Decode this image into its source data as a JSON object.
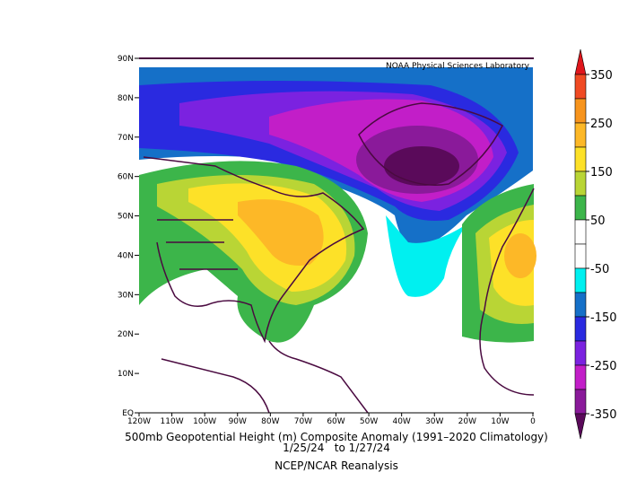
{
  "header": {
    "title": "NOAA Physical Sciences Laboratory"
  },
  "map": {
    "lat_labels": [
      "90N",
      "80N",
      "70N",
      "60N",
      "50N",
      "40N",
      "30N",
      "20N",
      "10N",
      "EQ"
    ],
    "lon_labels": [
      "120W",
      "110W",
      "100W",
      "90W",
      "80W",
      "70W",
      "60W",
      "50W",
      "40W",
      "30W",
      "20W",
      "10W",
      "0"
    ]
  },
  "colorbar": {
    "ticks": [
      350,
      250,
      150,
      50,
      -50,
      -150,
      -250,
      -350
    ],
    "colors": [
      "#e0161c",
      "#f04a23",
      "#f7941d",
      "#fdb827",
      "#fde128",
      "#b9d535",
      "#3cb54a",
      "#ffffff",
      "#ffffff",
      "#00f0f0",
      "#1570c8",
      "#2a2ae0",
      "#7b22e0",
      "#c21ec8",
      "#8a1a9a",
      "#5a0a5a"
    ]
  },
  "caption": {
    "line1": "500mb Geopotential Height (m) Composite Anomaly (1991–2020 Climatology)",
    "line2": "1/25/24   to 1/27/24",
    "line3": "NCEP/NCAR Reanalysis"
  }
}
